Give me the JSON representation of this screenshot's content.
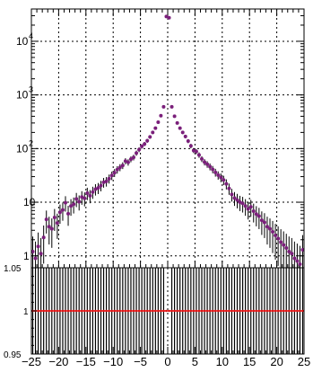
{
  "chart_data": [
    {
      "type": "scatter",
      "panel": "main",
      "yscale": "log",
      "xlim": [
        -25,
        25
      ],
      "ylim": [
        0.6,
        40000
      ],
      "grid": true,
      "ytick_labels": [
        {
          "value": 1,
          "base": "1",
          "exp": ""
        },
        {
          "value": 10,
          "base": "10",
          "exp": ""
        },
        {
          "value": 100,
          "base": "10",
          "exp": "2"
        },
        {
          "value": 1000,
          "base": "10",
          "exp": "3"
        },
        {
          "value": 10000,
          "base": "10",
          "exp": "4"
        }
      ],
      "marker_color": "#7a1f7a",
      "x": [
        -24.75,
        -24.25,
        -23.75,
        -23.25,
        -22.75,
        -22.25,
        -21.75,
        -21.25,
        -20.75,
        -20.25,
        -19.75,
        -19.25,
        -18.75,
        -18.25,
        -17.75,
        -17.25,
        -16.75,
        -16.25,
        -15.75,
        -15.25,
        -14.75,
        -14.25,
        -13.75,
        -13.25,
        -12.75,
        -12.25,
        -11.75,
        -11.25,
        -10.75,
        -10.25,
        -9.75,
        -9.25,
        -8.75,
        -8.25,
        -7.75,
        -7.25,
        -6.75,
        -6.25,
        -5.75,
        -5.25,
        -4.75,
        -4.25,
        -3.75,
        -3.25,
        -2.75,
        -2.25,
        -1.75,
        -1.25,
        -0.75,
        -0.25,
        0.25,
        0.75,
        1.25,
        1.75,
        2.25,
        2.75,
        3.25,
        3.75,
        4.25,
        4.75,
        5.25,
        5.75,
        6.25,
        6.75,
        7.25,
        7.75,
        8.25,
        8.75,
        9.25,
        9.75,
        10.25,
        10.75,
        11.25,
        11.75,
        12.25,
        12.75,
        13.25,
        13.75,
        14.25,
        14.75,
        15.25,
        15.75,
        16.25,
        16.75,
        17.25,
        17.75,
        18.25,
        18.75,
        19.25,
        19.75,
        20.25,
        20.75,
        21.25,
        21.75,
        22.25,
        22.75,
        23.25,
        23.75,
        24.25,
        24.75
      ],
      "y": [
        1.2,
        0.9,
        1.5,
        1.1,
        2.2,
        4.8,
        3.5,
        3.2,
        5.2,
        4.1,
        6.5,
        7.2,
        9.8,
        6.1,
        8.5,
        9.2,
        11.5,
        10.2,
        12.5,
        11.8,
        14.8,
        13.2,
        15.5,
        17.5,
        18.5,
        20.5,
        23.5,
        24.5,
        27.5,
        31.5,
        35.5,
        40.5,
        44.5,
        48.5,
        58.5,
        55.5,
        63.5,
        68.5,
        82.5,
        95.5,
        110,
        122,
        140,
        165,
        200,
        240,
        310,
        410,
        600,
        29000,
        27500,
        600,
        400,
        300,
        240,
        200,
        168,
        138,
        112,
        92,
        88,
        76,
        64,
        56,
        51,
        46,
        41,
        36,
        32,
        29,
        26,
        22,
        18,
        14,
        12,
        11,
        10,
        9.5,
        8.5,
        7.5,
        8.2,
        6.8,
        6.0,
        5.5,
        4.6,
        4.2,
        3.5,
        3.2,
        2.8,
        2.4,
        2.1,
        1.8,
        1.6,
        1.4,
        1.2,
        1.1,
        0.9,
        0.8,
        0.7,
        1.3
      ]
    },
    {
      "type": "scatter",
      "panel": "ratio",
      "xlim": [
        -25,
        25
      ],
      "ylim": [
        0.95,
        1.05
      ],
      "grid": true,
      "reference_line": 1,
      "reference_color": "#e01010",
      "xtick_labels": [
        "−25",
        "−20",
        "−15",
        "−10",
        "−5",
        "0",
        "5",
        "10",
        "15",
        "20",
        "25"
      ],
      "xtick_values": [
        -25,
        -20,
        -15,
        -10,
        -5,
        0,
        5,
        10,
        15,
        20,
        25
      ],
      "ytick_labels": [
        {
          "value": 0.95,
          "text": "0.95"
        },
        {
          "value": 1.0,
          "text": "1"
        },
        {
          "value": 1.05,
          "text": "1.05"
        }
      ],
      "y": 1.0
    }
  ]
}
